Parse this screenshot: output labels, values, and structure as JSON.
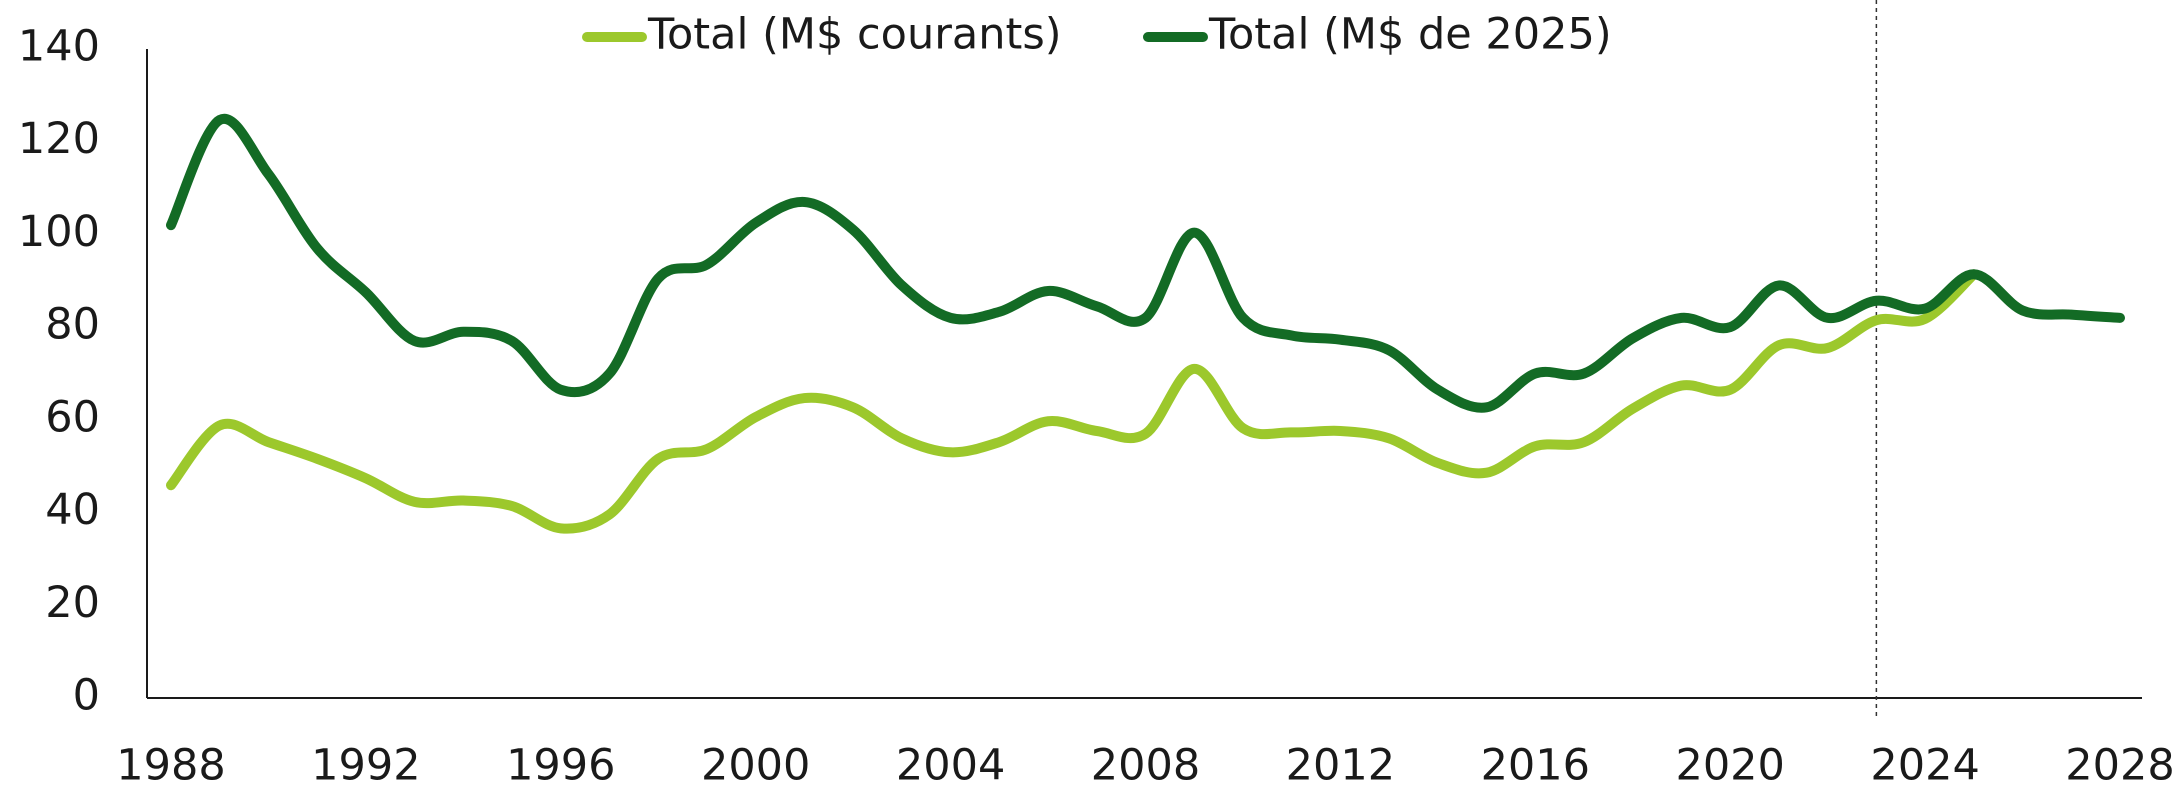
{
  "chart_data": {
    "type": "line",
    "x": [
      1988,
      1989,
      1990,
      1991,
      1992,
      1993,
      1994,
      1995,
      1996,
      1997,
      1998,
      1999,
      2000,
      2001,
      2002,
      2003,
      2004,
      2005,
      2006,
      2007,
      2008,
      2009,
      2010,
      2011,
      2012,
      2013,
      2014,
      2015,
      2016,
      2017,
      2018,
      2019,
      2020,
      2021,
      2022,
      2023,
      2024,
      2025,
      2026,
      2027,
      2028
    ],
    "series": [
      {
        "name": "Total (M$ courants)",
        "color": "#9cc82c",
        "values": [
          45.9,
          58.8,
          55.2,
          51.6,
          47.4,
          42.3,
          42.6,
          41.4,
          36.6,
          39.6,
          51.6,
          53.7,
          60.6,
          64.7,
          62.7,
          56,
          53,
          55.2,
          59.7,
          57.6,
          57,
          71,
          58.2,
          57.3,
          57.6,
          56,
          50.7,
          48.6,
          54.3,
          55.2,
          62.4,
          67.4,
          66.5,
          76.1,
          75.5,
          81.5,
          81.8,
          91.4,
          null,
          null,
          null
        ]
      },
      {
        "name": "Total (M$ de 2025)",
        "color": "#136b25",
        "values": [
          102,
          124.7,
          113,
          97,
          87.5,
          77,
          79,
          77,
          66.5,
          70,
          90.5,
          93.5,
          102.5,
          107,
          101,
          89,
          82,
          83.3,
          87.8,
          84.5,
          82,
          100.4,
          82,
          78.2,
          77.3,
          75,
          66.5,
          62.7,
          70,
          70,
          77.6,
          82,
          80,
          89,
          82,
          85.7,
          84,
          91.4,
          83.6,
          82.7,
          82
        ]
      }
    ],
    "xlim": [
      1988,
      2028
    ],
    "xticks": [
      1988,
      1992,
      1996,
      2000,
      2004,
      2008,
      2012,
      2016,
      2020,
      2024,
      2028
    ],
    "ylim": [
      0,
      140
    ],
    "yticks": [
      0,
      20,
      40,
      60,
      80,
      100,
      120,
      140
    ],
    "vline_x": 2023,
    "grid": false
  }
}
